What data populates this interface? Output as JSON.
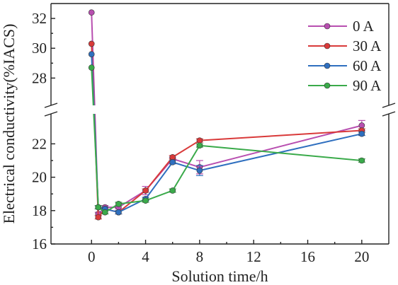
{
  "chart_data": {
    "type": "line",
    "xlabel": "Solution time/h",
    "ylabel": "Electrical conductivity(%IACS)",
    "xlim": [
      -3,
      22
    ],
    "x_ticks": [
      0,
      4,
      8,
      12,
      16,
      20
    ],
    "x_tick_labels": [
      "0",
      "4",
      "8",
      "12",
      "16",
      "20"
    ],
    "y_axis_broken": true,
    "y_lower_range": [
      16,
      23.5
    ],
    "y_upper_range": [
      26.5,
      33
    ],
    "y_ticks": [
      16,
      18,
      20,
      22,
      28,
      30,
      32
    ],
    "y_tick_labels": [
      "16",
      "18",
      "20",
      "22",
      "28",
      "30",
      "32"
    ],
    "legend_position": "top-right",
    "error_bars": true,
    "series": [
      {
        "name": "0 A",
        "color": "#b84fb0",
        "points": [
          [
            0,
            32.4
          ],
          [
            0.5,
            17.8
          ],
          [
            1,
            18.2
          ],
          [
            2,
            18.2
          ],
          [
            4,
            19.2
          ],
          [
            6,
            21.1
          ],
          [
            8,
            20.6
          ],
          [
            20,
            23.1
          ]
        ],
        "errors": [
          0,
          0.1,
          0.1,
          0.1,
          0.25,
          0.1,
          0.4,
          0.3
        ]
      },
      {
        "name": "30 A",
        "color": "#d93a3a",
        "points": [
          [
            0,
            30.3
          ],
          [
            0.5,
            17.6
          ],
          [
            1,
            18.1
          ],
          [
            2,
            17.9
          ],
          [
            4,
            19.2
          ],
          [
            6,
            21.2
          ],
          [
            8,
            22.2
          ],
          [
            20,
            22.8
          ]
        ],
        "errors": [
          0,
          0.1,
          0.1,
          0.1,
          0.1,
          0.1,
          0.1,
          0.1
        ]
      },
      {
        "name": "60 A",
        "color": "#2f6fbf",
        "points": [
          [
            0,
            29.6
          ],
          [
            0.5,
            18.2
          ],
          [
            1,
            18.1
          ],
          [
            2,
            17.9
          ],
          [
            4,
            18.7
          ],
          [
            6,
            20.9
          ],
          [
            8,
            20.4
          ],
          [
            20,
            22.6
          ]
        ],
        "errors": [
          0,
          0.1,
          0.1,
          0.1,
          0.1,
          0.1,
          0.3,
          0.1
        ]
      },
      {
        "name": "90 A",
        "color": "#3aaa4a",
        "points": [
          [
            0,
            28.7
          ],
          [
            0.5,
            18.2
          ],
          [
            1,
            17.9
          ],
          [
            2,
            18.4
          ],
          [
            4,
            18.6
          ],
          [
            6,
            19.2
          ],
          [
            8,
            21.9
          ],
          [
            20,
            21.0
          ]
        ],
        "errors": [
          0,
          0.1,
          0.1,
          0.1,
          0.1,
          0.1,
          0.1,
          0.1
        ]
      }
    ]
  }
}
